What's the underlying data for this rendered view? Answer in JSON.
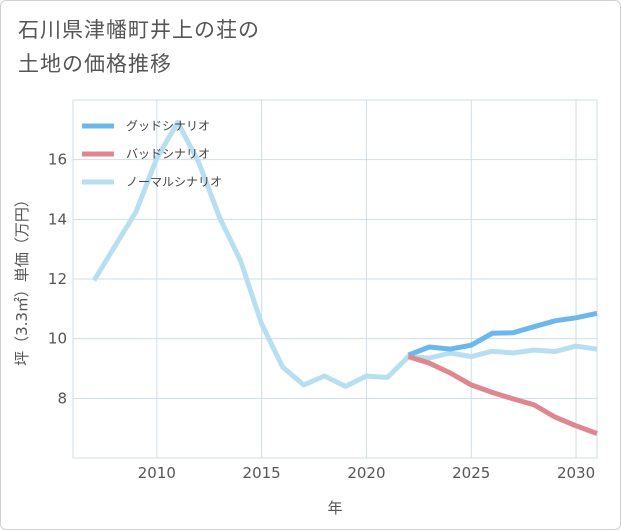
{
  "title_lines": [
    "石川県津幡町井上の荘の",
    "土地の価格推移"
  ],
  "chart_data": {
    "type": "line",
    "title": "石川県津幡町井上の荘の土地の価格推移",
    "xlabel": "年",
    "ylabel": "坪（3.3㎡）単価（万円）",
    "xlim": [
      2006,
      2031
    ],
    "ylim": [
      6,
      18
    ],
    "xticks": [
      2010,
      2015,
      2020,
      2025,
      2030
    ],
    "yticks": [
      8,
      10,
      12,
      14,
      16
    ],
    "grid": true,
    "legend_position": "top-left",
    "series": [
      {
        "name": "グッドシナリオ",
        "color": "#6bb8ed",
        "x": [
          2022,
          2023,
          2024,
          2025,
          2026,
          2027,
          2028,
          2029,
          2030,
          2031
        ],
        "y": [
          9.45,
          9.72,
          9.65,
          9.78,
          10.18,
          10.2,
          10.4,
          10.6,
          10.7,
          10.85
        ]
      },
      {
        "name": "バッドシナリオ",
        "color": "#e0868f",
        "x": [
          2022,
          2023,
          2024,
          2025,
          2026,
          2027,
          2028,
          2029,
          2030,
          2031
        ],
        "y": [
          9.4,
          9.18,
          8.85,
          8.45,
          8.2,
          7.98,
          7.78,
          7.37,
          7.08,
          6.82
        ]
      },
      {
        "name": "ノーマルシナリオ",
        "color": "#b8dff0",
        "x": [
          2007,
          2008,
          2009,
          2010,
          2011,
          2012,
          2013,
          2014,
          2015,
          2016,
          2017,
          2018,
          2019,
          2020,
          2021,
          2022,
          2023,
          2024,
          2025,
          2026,
          2027,
          2028,
          2029,
          2030,
          2031
        ],
        "y": [
          11.95,
          13.1,
          14.25,
          16.05,
          17.25,
          15.9,
          14.05,
          12.6,
          10.5,
          9.05,
          8.45,
          8.75,
          8.4,
          8.75,
          8.7,
          9.4,
          9.35,
          9.52,
          9.4,
          9.58,
          9.52,
          9.62,
          9.57,
          9.75,
          9.65
        ]
      }
    ]
  }
}
